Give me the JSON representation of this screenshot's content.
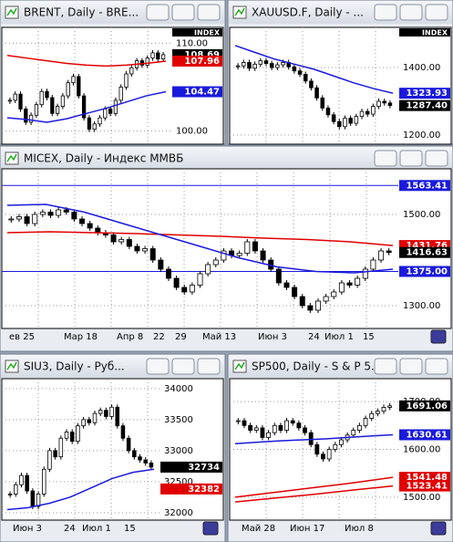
{
  "candle_colors": {
    "up": "#ffffff",
    "down": "#000000",
    "outline": "#000000"
  },
  "grid": true,
  "windows": [
    {
      "title": "BRENT, Daily - BRE...",
      "index_label": "INDEX",
      "ylim": [
        98.5,
        111.8
      ],
      "ticks": [
        {
          "value": 110,
          "label": "110.00"
        },
        {
          "value": 100,
          "label": "100.00"
        }
      ],
      "closes": [
        103.5,
        104.2,
        102.5,
        101.0,
        101.8,
        103.0,
        104.5,
        103.8,
        102.0,
        102.8,
        104.0,
        105.5,
        106.2,
        104.0,
        101.5,
        100.2,
        100.8,
        101.5,
        102.5,
        102.0,
        103.5,
        105.0,
        106.5,
        107.2,
        108.0,
        107.5,
        108.3,
        108.9,
        108.2,
        108.69
      ],
      "moving_averages": [
        {
          "color": "#e00000",
          "values": [
            108.6,
            108.3,
            108.0,
            107.7,
            107.5,
            107.4,
            107.5,
            107.7,
            107.96
          ]
        },
        {
          "color": "#1a1adc",
          "values": [
            101.5,
            101.3,
            101.0,
            101.4,
            102.0,
            102.6,
            103.3,
            104.0,
            104.47
          ]
        }
      ],
      "hlines": [],
      "price_labels": [
        {
          "value": 108.69,
          "color": "#000000"
        },
        {
          "value": 107.96,
          "color": "#e00000"
        },
        {
          "value": 104.47,
          "color": "#1a1adc"
        }
      ],
      "dates": []
    },
    {
      "title": "XAUUSD.F, Daily - ...",
      "index_label": "INDEX",
      "ylim": [
        1173,
        1519
      ],
      "ticks": [
        {
          "value": 1400,
          "label": "1400.00"
        },
        {
          "value": 1200,
          "label": "1200.00"
        }
      ],
      "closes": [
        1405,
        1415,
        1398,
        1410,
        1420,
        1412,
        1400,
        1408,
        1415,
        1402,
        1390,
        1380,
        1360,
        1340,
        1310,
        1280,
        1260,
        1240,
        1225,
        1250,
        1235,
        1255,
        1270,
        1262,
        1285,
        1300,
        1295,
        1287.4
      ],
      "moving_averages": [
        {
          "color": "#1a1adc",
          "values": [
            1465,
            1445,
            1425,
            1410,
            1395,
            1375,
            1355,
            1338,
            1323.93
          ]
        }
      ],
      "hlines": [],
      "price_labels": [
        {
          "value": 1323.93,
          "color": "#1a1adc"
        },
        {
          "value": 1287.4,
          "label": "1287.40",
          "color": "#000000"
        }
      ],
      "dates": []
    },
    {
      "title": "MICEX, Daily - Индекс ММВБ",
      "ylim": [
        1250,
        1600
      ],
      "ticks": [
        {
          "value": 1500,
          "label": "1500.00"
        },
        {
          "value": 1300,
          "label": "1300.00"
        }
      ],
      "closes": [
        1490,
        1495,
        1480,
        1500,
        1505,
        1498,
        1510,
        1505,
        1490,
        1480,
        1470,
        1460,
        1455,
        1440,
        1445,
        1430,
        1420,
        1425,
        1400,
        1380,
        1360,
        1340,
        1330,
        1345,
        1370,
        1390,
        1400,
        1420,
        1410,
        1415,
        1440,
        1420,
        1400,
        1380,
        1350,
        1340,
        1320,
        1300,
        1290,
        1310,
        1320,
        1330,
        1350,
        1345,
        1360,
        1380,
        1400,
        1420,
        1416.63
      ],
      "moving_averages": [
        {
          "color": "#e00000",
          "values": [
            1460,
            1462,
            1460,
            1458,
            1455,
            1452,
            1448,
            1445,
            1440,
            1431.76
          ]
        },
        {
          "color": "#1a1adc",
          "values": [
            1520,
            1522,
            1505,
            1480,
            1455,
            1430,
            1405,
            1385,
            1375,
            1372,
            1380
          ]
        }
      ],
      "hlines": [
        {
          "value": 1563.41,
          "color": "#1a1adc"
        },
        {
          "value": 1375,
          "color": "#1a1adc"
        }
      ],
      "price_labels": [
        {
          "value": 1563.41,
          "color": "#1a1adc"
        },
        {
          "value": 1431.76,
          "color": "#e00000"
        },
        {
          "value": 1416.63,
          "color": "#000000"
        },
        {
          "value": 1375,
          "label": "1375.00",
          "color": "#1a1adc"
        }
      ],
      "dates": [
        "ев 25",
        "Мар 18",
        "Апр 8",
        "22",
        "29",
        "Май 13",
        "Июн 3",
        "24",
        "Июл 1",
        "15"
      ]
    },
    {
      "title": "SIU3, Daily - Руб...",
      "ylim": [
        31880,
        34160
      ],
      "ticks": [
        34000,
        33500,
        33000,
        32500,
        32000
      ],
      "closes": [
        32300,
        32450,
        32600,
        32350,
        32100,
        32300,
        32700,
        33000,
        32900,
        33200,
        33300,
        33150,
        33400,
        33500,
        33450,
        33600,
        33650,
        33550,
        33700,
        33400,
        33200,
        33000,
        32900,
        32850,
        32800,
        32734
      ],
      "moving_averages": [
        {
          "color": "#1a1adc",
          "values": [
            32050,
            32080,
            32150,
            32250,
            32400,
            32550,
            32650,
            32700
          ]
        }
      ],
      "hlines": [],
      "price_labels": [
        {
          "value": 32734,
          "color": "#000000"
        },
        {
          "value": 32382,
          "color": "#e00000"
        }
      ],
      "dates": [
        "Июн 3",
        "24",
        "Июл 1",
        "15"
      ]
    },
    {
      "title": "SP500, Daily - S & P 5...",
      "ylim": [
        1452,
        1748
      ],
      "ticks": [
        {
          "value": 1700,
          "label": "1700.00"
        },
        {
          "value": 1600,
          "label": "1600.00"
        },
        {
          "value": 1500,
          "label": "1500.00"
        }
      ],
      "closes": [
        1660,
        1650,
        1640,
        1645,
        1625,
        1635,
        1650,
        1640,
        1660,
        1655,
        1645,
        1635,
        1610,
        1590,
        1580,
        1600,
        1610,
        1620,
        1630,
        1640,
        1650,
        1665,
        1675,
        1680,
        1688,
        1691.06
      ],
      "moving_averages": [
        {
          "color": "#1a1adc",
          "values": [
            1612,
            1615,
            1618,
            1620,
            1622,
            1625,
            1628,
            1630.61
          ]
        },
        {
          "color": "#e00000",
          "values": [
            1500,
            1510,
            1520,
            1530,
            1541.48
          ]
        },
        {
          "color": "#e00000",
          "values": [
            1490,
            1498,
            1506,
            1515,
            1523.41
          ]
        }
      ],
      "hlines": [],
      "price_labels": [
        {
          "value": 1691.06,
          "color": "#000000"
        },
        {
          "value": 1630.61,
          "color": "#1a1adc"
        },
        {
          "value": 1541.48,
          "color": "#e00000"
        },
        {
          "value": 1523.41,
          "color": "#e00000"
        }
      ],
      "dates": [
        "Май 28",
        "Июн 17",
        "Июл 8"
      ]
    }
  ]
}
